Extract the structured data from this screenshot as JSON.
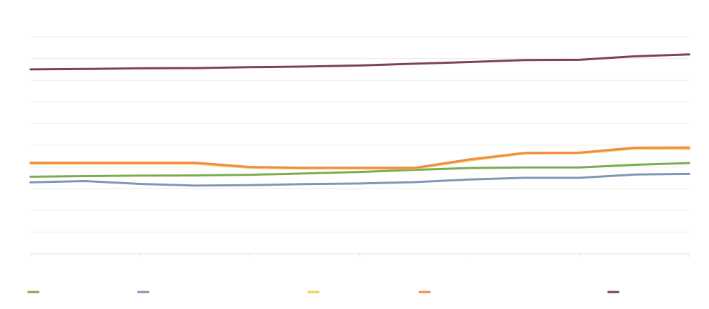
{
  "chart_data": {
    "type": "line",
    "title": "",
    "xlabel": "",
    "ylabel": "",
    "x": [
      1,
      2,
      3,
      4,
      5,
      6,
      7,
      8,
      9,
      10,
      11,
      12,
      13
    ],
    "ylim": [
      0,
      100
    ],
    "grid": true,
    "legend_position": "bottom",
    "series": [
      {
        "color": "#7cac4e",
        "values": [
          35.5,
          35.8,
          36.0,
          36.1,
          36.4,
          37.0,
          37.7,
          38.7,
          39.5,
          39.8,
          39.8,
          41.0,
          41.8
        ]
      },
      {
        "color": "#8096b6",
        "values": [
          32.9,
          33.5,
          32.2,
          31.4,
          31.6,
          32.1,
          32.4,
          33.0,
          34.2,
          35.0,
          35.0,
          36.5,
          36.8
        ]
      },
      {
        "color": "#f8c95a",
        "values": [
          41.5,
          41.5,
          41.5,
          41.5,
          39.6,
          39.3,
          39.3,
          39.3,
          43.0,
          46.2,
          46.3,
          48.4,
          48.4
        ]
      },
      {
        "color": "#ef8c44",
        "values": [
          42.0,
          42.0,
          42.0,
          42.0,
          40.0,
          39.6,
          39.6,
          39.6,
          43.5,
          46.5,
          46.6,
          48.9,
          49.0
        ]
      },
      {
        "color": "#7d4061",
        "values": [
          85.0,
          85.2,
          85.5,
          85.6,
          86.0,
          86.3,
          86.8,
          87.6,
          88.4,
          89.3,
          89.4,
          91.0,
          91.9
        ]
      }
    ]
  }
}
